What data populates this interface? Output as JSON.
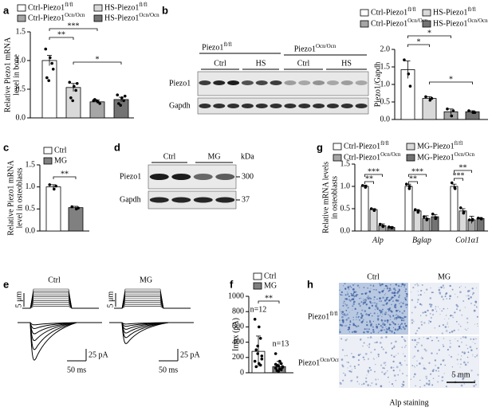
{
  "panel_labels": [
    "a",
    "b",
    "c",
    "d",
    "e",
    "f",
    "g",
    "h"
  ],
  "chart_data": [
    {
      "type": "bar",
      "ylabel": [
        "Relative Piezo1 mRNA",
        "level in bone"
      ],
      "ylim": [
        0,
        1.5
      ],
      "yticks": [
        {
          "value": 0,
          "label": "0.0"
        },
        {
          "value": 0.5,
          "label": "0.5"
        },
        {
          "value": 1,
          "label": "1.0"
        },
        {
          "value": 1.5,
          "label": "1.5"
        }
      ],
      "series": [
        {
          "name": "Ctrl-Piezo1",
          "name_sup": "fl/fl",
          "color": "#ffffff",
          "values": [
            1.0
          ],
          "errors": [
            0.09
          ],
          "points": [
            [
              1.2,
              1.05,
              0.95,
              0.7,
              0.65,
              0.85
            ]
          ]
        },
        {
          "name": "HS-Piezo1",
          "name_sup": "fl/fl",
          "color": "#d9d9d9",
          "values": [
            0.53
          ],
          "errors": [
            0.07
          ],
          "points": [
            [
              0.62,
              0.55,
              0.48,
              0.35,
              0.3,
              0.6
            ]
          ]
        },
        {
          "name": "Ctrl-Piezo1",
          "name_sup": "Ocn/Ocn",
          "color": "#a6a6a6",
          "values": [
            0.28
          ],
          "errors": [
            0.03
          ],
          "points": [
            [
              0.3,
              0.28,
              0.25,
              0.32,
              0.3
            ]
          ]
        },
        {
          "name": "HS-Piezo1",
          "name_sup": "Ocn/Ocn",
          "color": "#737373",
          "values": [
            0.32
          ],
          "errors": [
            0.04
          ],
          "points": [
            [
              0.4,
              0.35,
              0.3,
              0.25,
              0.22,
              0.38
            ]
          ]
        }
      ],
      "significance": [
        "***",
        "**",
        "*"
      ]
    },
    {
      "type": "bar",
      "ylabel": [
        "Piezo1/Gapdh"
      ],
      "ylim": [
        0,
        2
      ],
      "yticks": [
        {
          "value": 0,
          "label": "0.0"
        },
        {
          "value": 0.5,
          "label": "0.5"
        },
        {
          "value": 1,
          "label": "1.0"
        },
        {
          "value": 1.5,
          "label": "1.5"
        },
        {
          "value": 2,
          "label": "2.0"
        }
      ],
      "series": [
        {
          "name": "Ctrl-Piezo1",
          "name_sup": "fl/fl",
          "color": "#ffffff",
          "values": [
            1.42
          ],
          "errors": [
            0.25
          ],
          "points": [
            [
              1.7,
              1.3,
              0.95
            ]
          ]
        },
        {
          "name": "HS-Piezo1",
          "name_sup": "fl/fl",
          "color": "#d9d9d9",
          "values": [
            0.6
          ],
          "errors": [
            0.05
          ],
          "points": [
            [
              0.65,
              0.55,
              0.6
            ]
          ]
        },
        {
          "name": "Ctrl-Piezo1",
          "name_sup": "Ocn/Ocn",
          "color": "#a6a6a6",
          "values": [
            0.22
          ],
          "errors": [
            0.08
          ],
          "points": [
            [
              0.3,
              0.1,
              0.25
            ]
          ]
        },
        {
          "name": "HS-Piezo1",
          "name_sup": "Ocn/Ocn",
          "color": "#737373",
          "values": [
            0.22
          ],
          "errors": [
            0.03
          ],
          "points": [
            [
              0.25,
              0.2,
              0.2
            ]
          ]
        }
      ],
      "significance": [
        "*",
        "*",
        "*"
      ]
    },
    {
      "type": "bar",
      "ylabel": [
        "Relative Piezo1 mRNA",
        "level in osteoblasts"
      ],
      "ylim": [
        0,
        1.5
      ],
      "yticks": [
        {
          "value": 0,
          "label": "0.0"
        },
        {
          "value": 0.5,
          "label": "0.5"
        },
        {
          "value": 1,
          "label": "1.0"
        },
        {
          "value": 1.5,
          "label": "1.5"
        }
      ],
      "series": [
        {
          "name": "Ctrl",
          "color": "#ffffff",
          "values": [
            1.0
          ],
          "errors": [
            0.05
          ],
          "points": [
            [
              1.05,
              0.95,
              1.02
            ]
          ]
        },
        {
          "name": "MG",
          "color": "#808080",
          "values": [
            0.53
          ],
          "errors": [
            0.03
          ],
          "points": [
            [
              0.55,
              0.5,
              0.52
            ]
          ]
        }
      ],
      "significance": [
        "**"
      ]
    },
    {
      "type": "bar",
      "ylabel": [
        "Relative mRNA levels",
        "in osteoblasts"
      ],
      "ylim": [
        0,
        1.5
      ],
      "yticks": [
        {
          "value": 0,
          "label": "0.0"
        },
        {
          "value": 0.5,
          "label": "0.5"
        },
        {
          "value": 1,
          "label": "1.0"
        },
        {
          "value": 1.5,
          "label": "1.5"
        }
      ],
      "categories": [
        "Alp",
        "Bglap",
        "Col1α1"
      ],
      "series": [
        {
          "name": "Ctrl-Piezo1",
          "name_sup": "fl/fl",
          "color": "#ffffff",
          "values": [
            1.0,
            1.0,
            1.0
          ],
          "errors": [
            0.03,
            0.05,
            0.05
          ],
          "points": [
            [
              1.02,
              0.98,
              1.0
            ],
            [
              1.05,
              0.95,
              1.0
            ],
            [
              1.08,
              0.97,
              0.95
            ]
          ]
        },
        {
          "name": "MG-Piezo1",
          "name_sup": "fl/fl",
          "color": "#d9d9d9",
          "values": [
            0.48,
            0.45,
            0.45
          ],
          "errors": [
            0.02,
            0.03,
            0.05
          ],
          "points": [
            [
              0.5,
              0.46,
              0.48
            ],
            [
              0.48,
              0.42,
              0.45
            ],
            [
              0.52,
              0.4,
              0.43
            ]
          ]
        },
        {
          "name": "Ctrl-Piezo1",
          "name_sup": "Ocn/Ocn",
          "color": "#a6a6a6",
          "values": [
            0.12,
            0.28,
            0.25
          ],
          "errors": [
            0.04,
            0.06,
            0.08
          ],
          "points": [
            [
              0.15,
              0.1,
              0.11
            ],
            [
              0.32,
              0.25,
              0.27
            ],
            [
              0.25,
              0.24,
              0.26
            ]
          ]
        },
        {
          "name": "MG-Piezo1",
          "name_sup": "Ocn/Ocn",
          "color": "#737373",
          "values": [
            0.08,
            0.32,
            0.28
          ],
          "errors": [
            0.02,
            0.05,
            0.02
          ],
          "points": [
            [
              0.09,
              0.07,
              0.08
            ],
            [
              0.38,
              0.28,
              0.3
            ],
            [
              0.29,
              0.28,
              0.27
            ]
          ]
        }
      ],
      "significance": [
        "**",
        "***",
        "**",
        "***",
        "**",
        "***"
      ]
    },
    {
      "type": "bar",
      "ylabel": [
        "Imax (pA)"
      ],
      "ylim": [
        0,
        1000
      ],
      "yticks": [
        0,
        200,
        400,
        600,
        800,
        1000
      ],
      "series": [
        {
          "name": "Ctrl",
          "color": "#ffffff",
          "values": [
            280
          ],
          "errors": [
            200
          ],
          "points": [
            [
              700,
              600,
              450,
              300,
              250,
              180,
              150,
              120,
              100,
              80,
              350,
              220
            ]
          ]
        },
        {
          "name": "MG",
          "color": "#808080",
          "values": [
            80
          ],
          "errors": [
            70
          ],
          "points": [
            [
              250,
              150,
              120,
              100,
              90,
              80,
              60,
              50,
              40,
              30,
              20,
              70,
              110
            ]
          ]
        }
      ],
      "annotations": [
        "n=12",
        "n=13"
      ],
      "significance": [
        "**"
      ]
    }
  ],
  "blot_b": {
    "group_labels": [
      {
        "text": "Piezo1",
        "sup": "fl/fl"
      },
      {
        "text": "Piezo1",
        "sup": "Ocn/Ocn"
      }
    ],
    "lane_labels": [
      "Ctrl",
      "HS",
      "Ctrl",
      "HS"
    ],
    "row_labels": [
      "Piezo1",
      "Gapdh"
    ]
  },
  "blot_d": {
    "lane_labels": [
      "Ctrl",
      "MG"
    ],
    "unit": "kDa",
    "row_labels": [
      "Piezo1",
      "Gapdh"
    ],
    "sizes": [
      300,
      37
    ]
  },
  "traces_e": {
    "labels": [
      "Ctrl",
      "MG"
    ],
    "scale_step": "5 μm",
    "scale_current": "25 pA",
    "scale_time": "50 ms"
  },
  "staining_h": {
    "column_labels": [
      "Ctrl",
      "MG"
    ],
    "row_labels": [
      {
        "text": "Piezo1",
        "sup": "fl/fl"
      },
      {
        "text": "Piezo1",
        "sup": "Ocn/Ocn"
      }
    ],
    "scale": "5 mm",
    "caption": "Alp staining"
  }
}
